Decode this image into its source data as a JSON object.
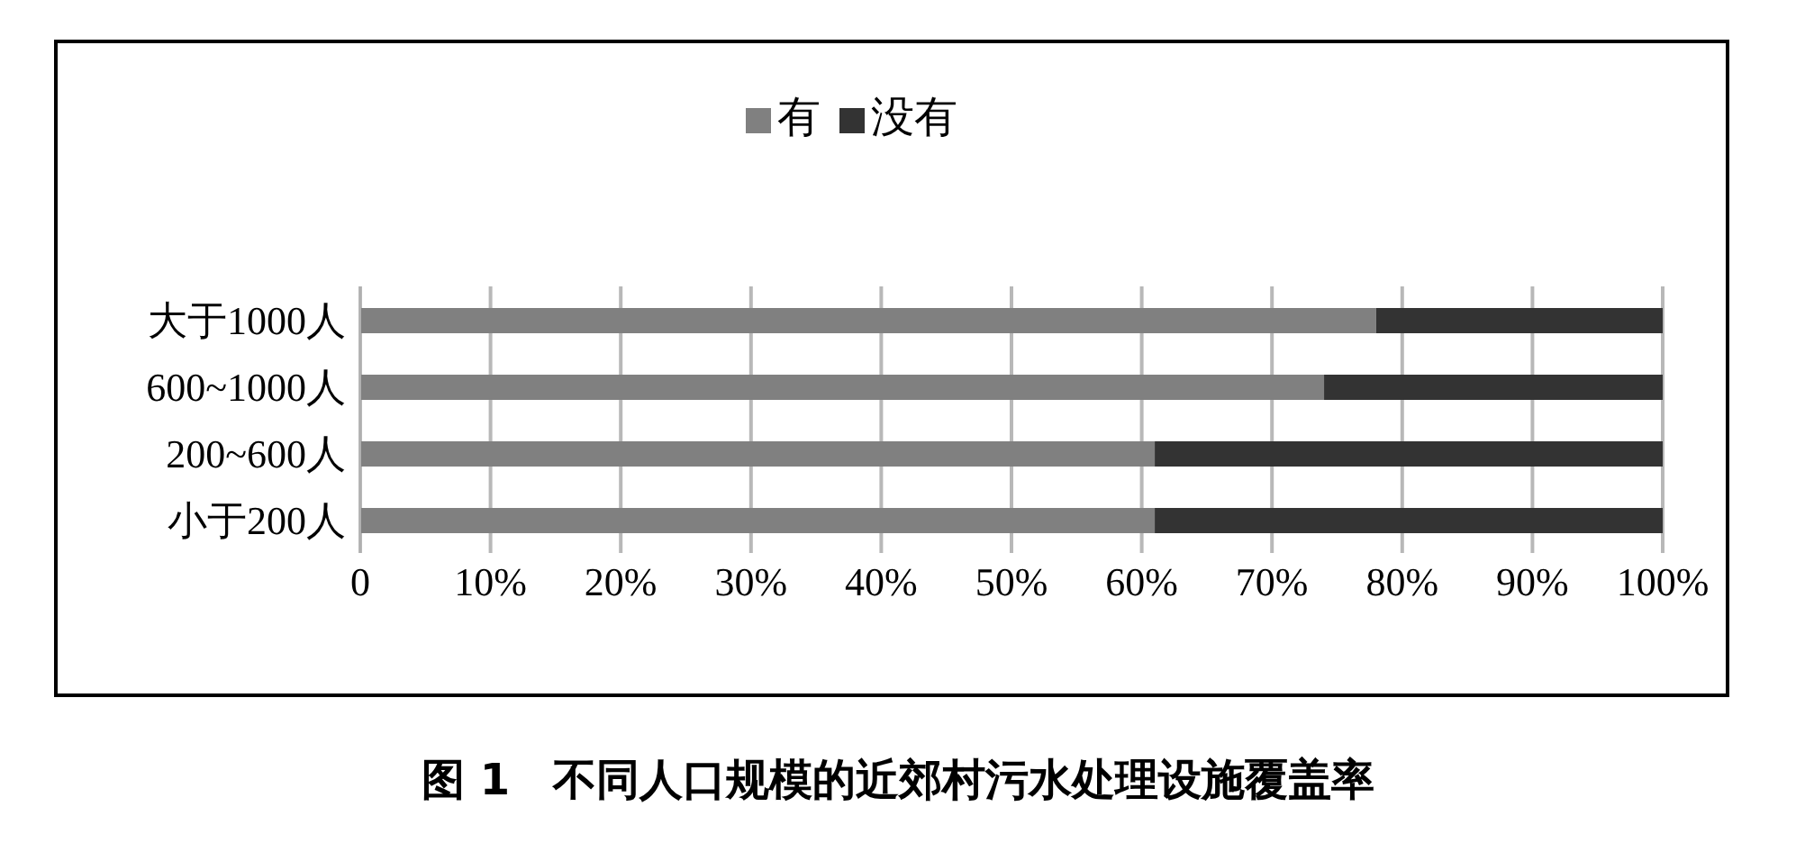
{
  "chart_data": {
    "type": "bar",
    "orientation": "horizontal",
    "stacked": true,
    "title": "图 1　不同人口规模的近郊村污水处理设施覆盖率",
    "categories": [
      "大于1000人",
      "600~1000人",
      "200~600人",
      "小于200人"
    ],
    "series": [
      {
        "name": "有",
        "color": "#808080",
        "values": [
          78,
          74,
          61,
          61
        ]
      },
      {
        "name": "没有",
        "color": "#333333",
        "values": [
          22,
          26,
          39,
          39
        ]
      }
    ],
    "xlim": [
      0,
      100
    ],
    "xticks": [
      0,
      {
        "value": 10,
        "label": "10%"
      },
      {
        "value": 20,
        "label": "20%"
      },
      {
        "value": 30,
        "label": "30%"
      },
      {
        "value": 40,
        "label": "40%"
      },
      {
        "value": 50,
        "label": "50%"
      },
      {
        "value": 60,
        "label": "60%"
      },
      {
        "value": 70,
        "label": "70%"
      },
      {
        "value": 80,
        "label": "80%"
      },
      {
        "value": 90,
        "label": "90%"
      },
      {
        "value": 100,
        "label": "100%"
      }
    ],
    "grid": "x",
    "legend": "top"
  }
}
